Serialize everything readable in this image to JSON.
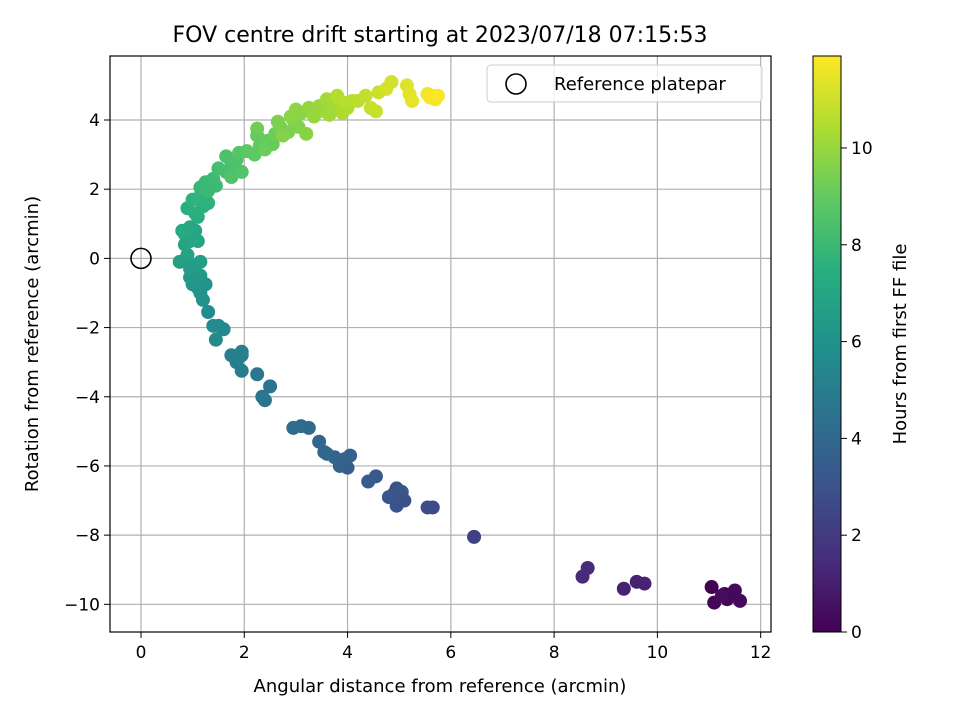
{
  "chart_data": {
    "type": "scatter",
    "title": "FOV centre drift starting at 2023/07/18 07:15:53",
    "xlabel": "Angular distance from reference (arcmin)",
    "ylabel": "Rotation from reference (arcmin)",
    "xlim": [
      -0.6,
      12.2
    ],
    "ylim": [
      -10.8,
      5.85
    ],
    "xticks": [
      0,
      2,
      4,
      6,
      8,
      10,
      12
    ],
    "yticks": [
      -10,
      -8,
      -6,
      -4,
      -2,
      0,
      2,
      4
    ],
    "xtick_labels": [
      "0",
      "2",
      "4",
      "6",
      "8",
      "10",
      "12"
    ],
    "ytick_labels": [
      "−10",
      "−8",
      "−6",
      "−4",
      "−2",
      "0",
      "2",
      "4"
    ],
    "grid": true,
    "legend": {
      "position": "top-right",
      "entries": [
        {
          "label": "Reference platepar",
          "marker": "open-circle"
        }
      ]
    },
    "reference_point": {
      "x": 0,
      "y": 0
    },
    "colorbar": {
      "label": "Hours from first FF file",
      "colormap": "viridis",
      "range": [
        0,
        11.9
      ],
      "ticks": [
        0,
        2,
        4,
        6,
        8,
        10
      ],
      "tick_labels": [
        "0",
        "2",
        "4",
        "6",
        "8",
        "10"
      ]
    },
    "points": [
      [
        11.05,
        -9.5,
        0.05
      ],
      [
        11.1,
        -9.95,
        0.1
      ],
      [
        11.3,
        -9.7,
        0.15
      ],
      [
        11.35,
        -9.85,
        0.2
      ],
      [
        11.5,
        -9.6,
        0.25
      ],
      [
        11.6,
        -9.9,
        0.3
      ],
      [
        11.25,
        -9.75,
        0.35
      ],
      [
        9.35,
        -9.55,
        1.1
      ],
      [
        9.6,
        -9.35,
        1.15
      ],
      [
        9.75,
        -9.4,
        1.2
      ],
      [
        8.55,
        -9.2,
        1.4
      ],
      [
        8.65,
        -8.95,
        1.45
      ],
      [
        6.45,
        -8.05,
        2.3
      ],
      [
        5.65,
        -7.2,
        2.7
      ],
      [
        5.55,
        -7.2,
        2.75
      ],
      [
        5.1,
        -7.0,
        2.9
      ],
      [
        4.95,
        -7.15,
        2.95
      ],
      [
        4.9,
        -6.8,
        3.0
      ],
      [
        4.95,
        -6.65,
        3.05
      ],
      [
        4.8,
        -6.9,
        3.1
      ],
      [
        5.05,
        -6.75,
        3.15
      ],
      [
        4.55,
        -6.3,
        3.35
      ],
      [
        4.4,
        -6.45,
        3.4
      ],
      [
        4.0,
        -6.05,
        3.6
      ],
      [
        3.95,
        -5.8,
        3.65
      ],
      [
        4.05,
        -5.7,
        3.7
      ],
      [
        3.85,
        -6.0,
        3.75
      ],
      [
        3.75,
        -5.75,
        3.8
      ],
      [
        3.55,
        -5.6,
        3.85
      ],
      [
        3.45,
        -5.3,
        3.9
      ],
      [
        3.6,
        -5.65,
        3.95
      ],
      [
        3.25,
        -4.9,
        4.1
      ],
      [
        3.1,
        -4.85,
        4.15
      ],
      [
        2.95,
        -4.9,
        4.2
      ],
      [
        2.5,
        -3.7,
        4.5
      ],
      [
        2.35,
        -4.0,
        4.55
      ],
      [
        2.4,
        -4.1,
        4.6
      ],
      [
        2.25,
        -3.35,
        4.7
      ],
      [
        1.95,
        -3.25,
        5.0
      ],
      [
        1.85,
        -3.0,
        5.05
      ],
      [
        1.75,
        -2.8,
        5.1
      ],
      [
        1.95,
        -2.8,
        5.15
      ],
      [
        1.95,
        -2.7,
        5.2
      ],
      [
        1.6,
        -2.05,
        5.5
      ],
      [
        1.5,
        -1.95,
        5.55
      ],
      [
        1.4,
        -1.95,
        5.6
      ],
      [
        1.45,
        -2.35,
        5.65
      ],
      [
        1.3,
        -1.55,
        5.75
      ],
      [
        1.2,
        -1.2,
        6.0
      ],
      [
        1.15,
        -1.0,
        6.05
      ],
      [
        1.25,
        -0.75,
        6.1
      ],
      [
        1.1,
        -0.85,
        6.15
      ],
      [
        1.0,
        -0.75,
        6.2
      ],
      [
        0.95,
        -0.55,
        6.25
      ],
      [
        1.15,
        -0.5,
        6.3
      ],
      [
        0.95,
        -0.3,
        6.45
      ],
      [
        1.05,
        -0.2,
        6.5
      ],
      [
        0.85,
        -0.05,
        6.55
      ],
      [
        1.15,
        -0.1,
        6.6
      ],
      [
        0.75,
        -0.1,
        6.65
      ],
      [
        0.9,
        0.1,
        6.8
      ],
      [
        1.1,
        0.5,
        6.85
      ],
      [
        0.85,
        0.4,
        6.9
      ],
      [
        0.95,
        0.5,
        6.95
      ],
      [
        1.05,
        0.8,
        7.0
      ],
      [
        0.85,
        0.7,
        7.05
      ],
      [
        1.0,
        0.6,
        7.1
      ],
      [
        0.95,
        0.9,
        7.15
      ],
      [
        0.8,
        0.8,
        7.2
      ],
      [
        1.1,
        1.2,
        7.4
      ],
      [
        0.9,
        1.45,
        7.45
      ],
      [
        1.05,
        1.3,
        7.5
      ],
      [
        1.2,
        1.5,
        7.55
      ],
      [
        1.3,
        1.6,
        7.6
      ],
      [
        1.0,
        1.7,
        7.65
      ],
      [
        1.15,
        1.8,
        7.7
      ],
      [
        1.15,
        2.05,
        7.9
      ],
      [
        1.3,
        1.95,
        7.95
      ],
      [
        1.25,
        2.2,
        8.0
      ],
      [
        1.45,
        2.1,
        8.05
      ],
      [
        1.4,
        2.3,
        8.1
      ],
      [
        1.5,
        2.6,
        8.3
      ],
      [
        1.65,
        2.5,
        8.35
      ],
      [
        1.75,
        2.7,
        8.4
      ],
      [
        1.65,
        2.95,
        8.45
      ],
      [
        1.85,
        2.85,
        8.5
      ],
      [
        1.75,
        2.35,
        8.55
      ],
      [
        1.95,
        2.5,
        8.6
      ],
      [
        1.9,
        3.05,
        8.65
      ],
      [
        2.05,
        3.1,
        8.85
      ],
      [
        2.2,
        3.0,
        8.9
      ],
      [
        2.3,
        3.25,
        8.95
      ],
      [
        2.25,
        3.55,
        9.0
      ],
      [
        2.45,
        3.4,
        9.05
      ],
      [
        2.55,
        3.3,
        9.1
      ],
      [
        2.4,
        3.15,
        9.15
      ],
      [
        2.6,
        3.6,
        9.2
      ],
      [
        2.25,
        3.75,
        9.25
      ],
      [
        2.7,
        3.8,
        9.4
      ],
      [
        2.85,
        3.65,
        9.45
      ],
      [
        2.65,
        3.95,
        9.5
      ],
      [
        2.95,
        4.0,
        9.55
      ],
      [
        3.05,
        3.8,
        9.6
      ],
      [
        2.75,
        3.55,
        9.65
      ],
      [
        3.2,
        3.6,
        9.7
      ],
      [
        2.9,
        4.1,
        9.75
      ],
      [
        3.1,
        4.2,
        9.8
      ],
      [
        3.0,
        4.3,
        9.85
      ],
      [
        3.25,
        4.35,
        9.95
      ],
      [
        3.35,
        4.1,
        10.0
      ],
      [
        3.45,
        4.4,
        10.05
      ],
      [
        3.55,
        4.25,
        10.1
      ],
      [
        3.65,
        4.15,
        10.15
      ],
      [
        3.75,
        4.3,
        10.2
      ],
      [
        3.6,
        4.6,
        10.25
      ],
      [
        3.85,
        4.45,
        10.3
      ],
      [
        3.9,
        4.2,
        10.4
      ],
      [
        4.0,
        4.35,
        10.45
      ],
      [
        4.1,
        4.55,
        10.5
      ],
      [
        3.8,
        4.7,
        10.55
      ],
      [
        3.95,
        4.5,
        10.6
      ],
      [
        4.2,
        4.55,
        10.65
      ],
      [
        4.35,
        4.7,
        10.8
      ],
      [
        4.45,
        4.35,
        10.85
      ],
      [
        4.55,
        4.25,
        10.9
      ],
      [
        4.6,
        4.8,
        10.95
      ],
      [
        4.85,
        5.1,
        11.1
      ],
      [
        4.75,
        4.9,
        11.15
      ],
      [
        5.15,
        5.0,
        11.35
      ],
      [
        5.2,
        4.75,
        11.4
      ],
      [
        5.25,
        4.55,
        11.45
      ],
      [
        5.55,
        4.75,
        11.65
      ],
      [
        5.65,
        4.7,
        11.7
      ],
      [
        5.7,
        4.6,
        11.75
      ],
      [
        5.6,
        4.65,
        11.8
      ],
      [
        5.75,
        4.7,
        11.85
      ]
    ]
  }
}
